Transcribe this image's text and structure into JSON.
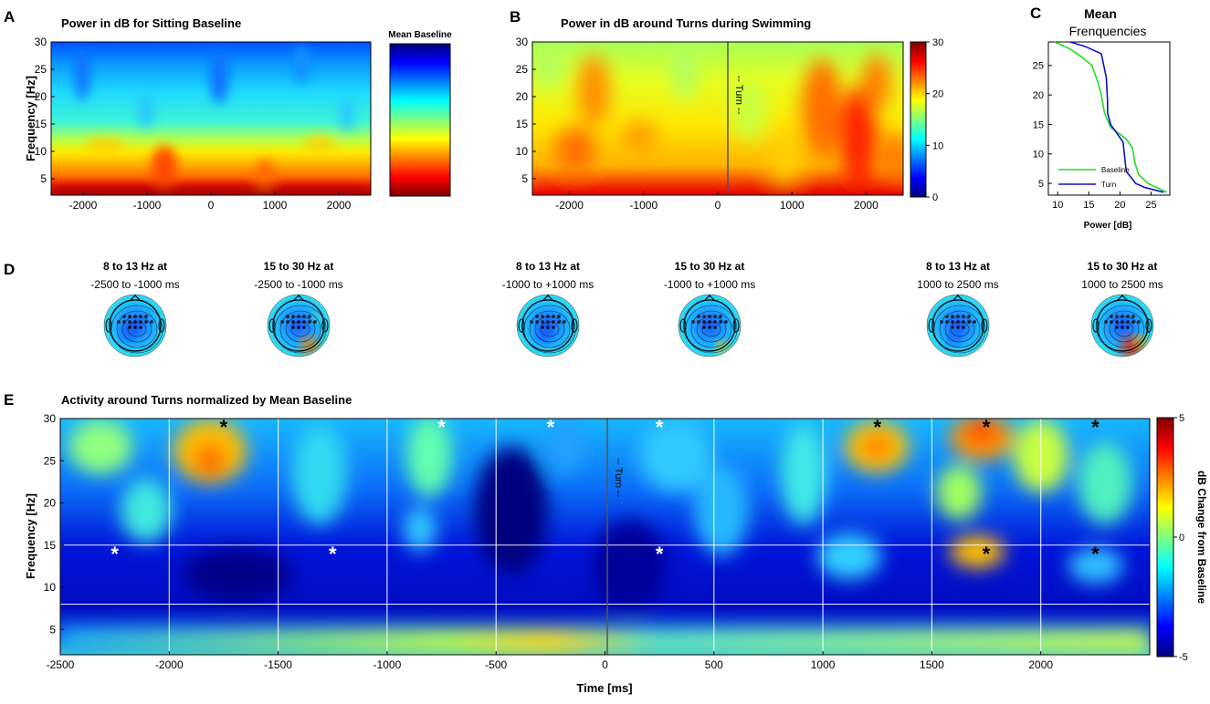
{
  "colors": {
    "jet": [
      "#00007f",
      "#0000ff",
      "#007fff",
      "#00ffff",
      "#7fff7f",
      "#ffff00",
      "#ff7f00",
      "#ff0000",
      "#7f0000"
    ],
    "baseline_line": "#22dd22",
    "turn_line": "#1010cc",
    "grid": "#ffffff",
    "divider": "#444444"
  },
  "panel_letters": {
    "a": "A",
    "b": "B",
    "c": "C",
    "d": "D",
    "e": "E"
  },
  "chart_data": [
    {
      "id": "A",
      "type": "heatmap",
      "title": "Power in dB for Sitting Baseline",
      "xlabel": "",
      "ylabel": "Frequency [Hz]",
      "xlim": [
        -2500,
        2500
      ],
      "ylim": [
        2,
        30
      ],
      "xticks": [
        -2000,
        -1000,
        0,
        1000,
        2000
      ],
      "yticks": [
        5,
        10,
        15,
        20,
        25,
        30
      ],
      "colorbar": {
        "label": "Mean Baseline",
        "ticks": []
      },
      "description_rows": [
        {
          "freq_hz": 30,
          "level": "low"
        },
        {
          "freq_hz": 20,
          "level": "low-mid"
        },
        {
          "freq_hz": 12,
          "level": "mid"
        },
        {
          "freq_hz": 7,
          "level": "high"
        },
        {
          "freq_hz": 2,
          "level": "highest"
        }
      ]
    },
    {
      "id": "B",
      "type": "heatmap",
      "title": "Power in dB around Turns during Swimming",
      "xlabel": "",
      "ylabel": "",
      "xlim": [
        -2500,
        2500
      ],
      "ylim": [
        2,
        30
      ],
      "xticks": [
        -2000,
        -1000,
        0,
        1000,
        2000
      ],
      "yticks": [
        5,
        10,
        15,
        20,
        25,
        30
      ],
      "colorbar": {
        "label": "",
        "ticks": [
          0,
          10,
          20,
          30
        ],
        "clim": [
          0,
          30
        ]
      },
      "annotations": [
        {
          "text": "-- Turn --",
          "x": 0
        }
      ]
    },
    {
      "id": "C",
      "type": "line",
      "title": "Mean",
      "subtitle": "Frenquencies",
      "xlabel": "Power [dB]",
      "ylabel": "",
      "xlim": [
        8.5,
        28
      ],
      "ylim": [
        3,
        29
      ],
      "xticks": [
        10,
        15,
        20,
        25
      ],
      "yticks": [
        5,
        10,
        15,
        20,
        25
      ],
      "legend": "bottom-left",
      "series": [
        {
          "name": "Baseline",
          "color": "#22dd22",
          "x": [
            27.5,
            24.5,
            23.0,
            22.4,
            22.0,
            21.0,
            19.8,
            18.5,
            17.5,
            17.0,
            16.5,
            15.5,
            13.8,
            12.0,
            9.5
          ],
          "y": [
            3.5,
            5,
            6.5,
            8.5,
            11,
            12.5,
            13.5,
            14.5,
            17,
            20,
            22,
            25,
            26.5,
            27.8,
            29
          ]
        },
        {
          "name": "Turn",
          "color": "#1010cc",
          "x": [
            27.0,
            24.0,
            22.5,
            21.8,
            21.0,
            20.8,
            20.5,
            19.5,
            18.5,
            18.0,
            18.0,
            17.8,
            17.0,
            14.5,
            12.0
          ],
          "y": [
            3.5,
            4.3,
            5.0,
            6.0,
            7.0,
            9.0,
            12.0,
            13.5,
            15.0,
            17.0,
            19.0,
            23.0,
            27.0,
            28.2,
            29
          ]
        }
      ]
    },
    {
      "id": "E",
      "type": "heatmap",
      "title": "Activity around Turns normalized by Mean Baseline",
      "xlabel": "Time [ms]",
      "ylabel": "Frequency [Hz]",
      "xlim": [
        -2500,
        2500
      ],
      "ylim": [
        2,
        30
      ],
      "xticks": [
        -2500,
        -2000,
        -1500,
        -1000,
        -500,
        0,
        500,
        1000,
        1500,
        2000
      ],
      "yticks": [
        5,
        10,
        15,
        20,
        25,
        30
      ],
      "colorbar": {
        "label": "dB Change from Baseline",
        "ticks": [
          -5,
          0,
          5
        ],
        "clim": [
          -5,
          5
        ]
      },
      "grid_x": [
        -2000,
        -1500,
        -1000,
        -500,
        500,
        1000,
        1500,
        2000
      ],
      "grid_y": [
        8,
        15
      ],
      "annotations": [
        {
          "text": "-- Turn --",
          "x": 0
        }
      ],
      "significance_markers": [
        {
          "x": -1750,
          "y": 30,
          "color": "black"
        },
        {
          "x": -750,
          "y": 30,
          "color": "white"
        },
        {
          "x": -250,
          "y": 30,
          "color": "white"
        },
        {
          "x": 250,
          "y": 30,
          "color": "white"
        },
        {
          "x": 1250,
          "y": 30,
          "color": "black"
        },
        {
          "x": 1750,
          "y": 30,
          "color": "black"
        },
        {
          "x": 2250,
          "y": 30,
          "color": "black"
        },
        {
          "x": -2250,
          "y": 15,
          "color": "white"
        },
        {
          "x": -1250,
          "y": 15,
          "color": "white"
        },
        {
          "x": 250,
          "y": 15,
          "color": "white"
        },
        {
          "x": 1750,
          "y": 15,
          "color": "black"
        },
        {
          "x": 2250,
          "y": 15,
          "color": "black"
        }
      ],
      "marker_symbol": "*"
    }
  ],
  "topomaps": [
    {
      "title": "8 to 13 Hz at",
      "subtitle": "-2500 to -1000 ms"
    },
    {
      "title": "15 to 30 Hz at",
      "subtitle": "-2500 to -1000 ms"
    },
    {
      "title": "8 to 13 Hz at",
      "subtitle": "-1000 to +1000 ms"
    },
    {
      "title": "15 to 30 Hz at",
      "subtitle": "-1000 to +1000 ms"
    },
    {
      "title": "8 to 13 Hz at",
      "subtitle": "1000 to 2500 ms"
    },
    {
      "title": "15 to 30 Hz at",
      "subtitle": "1000 to 2500 ms"
    }
  ]
}
